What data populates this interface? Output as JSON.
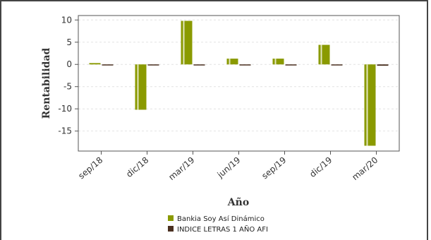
{
  "chart_data": {
    "type": "bar",
    "title": "",
    "xlabel": "Año",
    "ylabel": "Rentabilidad",
    "categories": [
      "sep/18",
      "dic/18",
      "mar/19",
      "jun/19",
      "sep/19",
      "dic/19",
      "mar/20"
    ],
    "series": [
      {
        "name": "Bankia Soy Así Dinámico",
        "color": "#8a9a00",
        "values": [
          0.3,
          -10.2,
          9.8,
          1.3,
          1.3,
          4.4,
          -18.3
        ]
      },
      {
        "name": "INDICE LETRAS 1 AÑO AFI",
        "color": "#4a3020",
        "values": [
          -0.1,
          -0.1,
          -0.1,
          -0.1,
          -0.1,
          -0.1,
          -0.3
        ]
      }
    ],
    "ylim": [
      -19.5,
      11
    ],
    "yticks": [
      10,
      5,
      0,
      -5,
      -10,
      -15
    ],
    "grid": true,
    "legend_position": "bottom"
  }
}
